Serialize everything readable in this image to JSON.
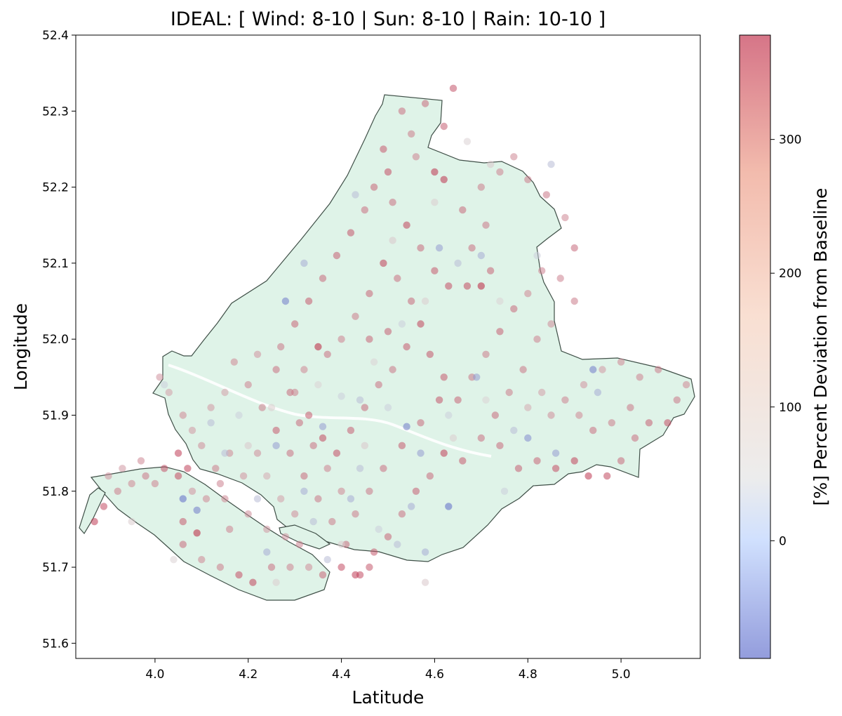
{
  "chart_data": {
    "type": "scatter",
    "title": "IDEAL: [ Wind: 8-10 | Sun: 8-10 | Rain: 10-10 ]",
    "xlabel": "Latitude",
    "ylabel": "Longitude",
    "xlim": [
      3.83,
      5.17
    ],
    "ylim": [
      51.58,
      52.4
    ],
    "xticks": [
      4.0,
      4.2,
      4.4,
      4.6,
      4.8,
      5.0
    ],
    "xtick_labels": [
      "4.0",
      "4.2",
      "4.4",
      "4.6",
      "4.8",
      "5.0"
    ],
    "yticks": [
      51.6,
      51.7,
      51.8,
      51.9,
      52.0,
      52.1,
      52.2,
      52.3,
      52.4
    ],
    "ytick_labels": [
      "51.6",
      "51.7",
      "51.8",
      "51.9",
      "52.0",
      "52.1",
      "52.2",
      "52.3",
      "52.4"
    ],
    "grid": false,
    "colormap": "coolwarm",
    "region_fill_color": "#dff3e8",
    "region_edge_color": "#3f4f47",
    "colorbar": {
      "label": "[%] Percent Deviation from Baseline",
      "range": [
        -88,
        378
      ],
      "ticks": [
        0,
        100,
        200,
        300
      ],
      "tick_labels": [
        "0",
        "100",
        "200",
        "300"
      ],
      "low_color": "#3b4cc0",
      "mid_color": "#dddddd",
      "high_color": "#b40426"
    },
    "points": [
      [
        4.49,
        52.25,
        230
      ],
      [
        4.5,
        52.22,
        250
      ],
      [
        4.47,
        52.2,
        210
      ],
      [
        4.45,
        52.17,
        190
      ],
      [
        4.42,
        52.14,
        240
      ],
      [
        4.39,
        52.11,
        220
      ],
      [
        4.36,
        52.08,
        200
      ],
      [
        4.33,
        52.05,
        230
      ],
      [
        4.3,
        52.02,
        210
      ],
      [
        4.27,
        51.99,
        180
      ],
      [
        4.53,
        52.3,
        190
      ],
      [
        4.58,
        52.31,
        200
      ],
      [
        4.62,
        52.28,
        220
      ],
      [
        4.64,
        52.33,
        240
      ],
      [
        4.6,
        52.22,
        300
      ],
      [
        4.62,
        52.21,
        300
      ],
      [
        4.55,
        52.27,
        170
      ],
      [
        4.56,
        52.24,
        160
      ],
      [
        4.51,
        52.18,
        190
      ],
      [
        4.54,
        52.15,
        270
      ],
      [
        4.57,
        52.12,
        200
      ],
      [
        4.6,
        52.09,
        230
      ],
      [
        4.63,
        52.07,
        250
      ],
      [
        4.67,
        52.07,
        260
      ],
      [
        4.7,
        52.07,
        330
      ],
      [
        4.72,
        52.09,
        210
      ],
      [
        4.68,
        52.12,
        190
      ],
      [
        4.71,
        52.15,
        180
      ],
      [
        4.66,
        52.17,
        200
      ],
      [
        4.7,
        52.2,
        170
      ],
      [
        4.74,
        52.22,
        160
      ],
      [
        4.77,
        52.24,
        150
      ],
      [
        4.8,
        52.21,
        170
      ],
      [
        4.84,
        52.19,
        180
      ],
      [
        4.88,
        52.16,
        150
      ],
      [
        4.9,
        52.12,
        200
      ],
      [
        4.87,
        52.08,
        160
      ],
      [
        4.9,
        52.05,
        170
      ],
      [
        4.85,
        52.02,
        140
      ],
      [
        4.82,
        52.0,
        160
      ],
      [
        4.79,
        51.96,
        180
      ],
      [
        4.76,
        51.93,
        170
      ],
      [
        4.73,
        51.9,
        200
      ],
      [
        4.7,
        51.87,
        190
      ],
      [
        4.66,
        51.84,
        230
      ],
      [
        4.62,
        51.85,
        280
      ],
      [
        4.59,
        51.82,
        200
      ],
      [
        4.56,
        51.8,
        220
      ],
      [
        4.53,
        51.77,
        190
      ],
      [
        4.5,
        51.74,
        210
      ],
      [
        4.47,
        51.72,
        230
      ],
      [
        4.44,
        51.69,
        250
      ],
      [
        4.41,
        51.73,
        200
      ],
      [
        4.38,
        51.76,
        170
      ],
      [
        4.35,
        51.79,
        180
      ],
      [
        4.32,
        51.82,
        200
      ],
      [
        4.29,
        51.85,
        190
      ],
      [
        4.26,
        51.88,
        230
      ],
      [
        4.23,
        51.91,
        170
      ],
      [
        4.2,
        51.94,
        160
      ],
      [
        4.17,
        51.97,
        150
      ],
      [
        4.22,
        51.98,
        130
      ],
      [
        4.26,
        51.96,
        190
      ],
      [
        4.29,
        51.93,
        200
      ],
      [
        4.33,
        51.9,
        230
      ],
      [
        4.36,
        51.87,
        260
      ],
      [
        4.39,
        51.85,
        250
      ],
      [
        4.42,
        51.88,
        220
      ],
      [
        4.45,
        51.91,
        200
      ],
      [
        4.48,
        51.94,
        190
      ],
      [
        4.51,
        51.96,
        180
      ],
      [
        4.54,
        51.99,
        230
      ],
      [
        4.57,
        52.02,
        270
      ],
      [
        4.55,
        52.05,
        200
      ],
      [
        4.52,
        52.08,
        190
      ],
      [
        4.49,
        52.1,
        280
      ],
      [
        4.46,
        52.06,
        210
      ],
      [
        4.43,
        52.03,
        170
      ],
      [
        4.4,
        52.0,
        160
      ],
      [
        4.37,
        51.98,
        190
      ],
      [
        4.35,
        51.99,
        330
      ],
      [
        4.32,
        51.96,
        150
      ],
      [
        4.3,
        51.93,
        170
      ],
      [
        4.46,
        52.0,
        210
      ],
      [
        4.5,
        52.01,
        220
      ],
      [
        4.59,
        51.98,
        240
      ],
      [
        4.62,
        51.95,
        230
      ],
      [
        4.65,
        51.92,
        210
      ],
      [
        4.68,
        51.95,
        180
      ],
      [
        4.71,
        51.98,
        170
      ],
      [
        4.74,
        52.01,
        220
      ],
      [
        4.77,
        52.04,
        200
      ],
      [
        4.8,
        52.06,
        150
      ],
      [
        4.83,
        52.09,
        160
      ],
      [
        4.74,
        51.86,
        200
      ],
      [
        4.78,
        51.83,
        220
      ],
      [
        4.82,
        51.84,
        210
      ],
      [
        4.86,
        51.83,
        250
      ],
      [
        4.9,
        51.84,
        270
      ],
      [
        4.93,
        51.82,
        290
      ],
      [
        4.97,
        51.82,
        260
      ],
      [
        5.0,
        51.84,
        200
      ],
      [
        5.03,
        51.87,
        190
      ],
      [
        5.06,
        51.89,
        220
      ],
      [
        5.1,
        51.89,
        250
      ],
      [
        5.12,
        51.92,
        180
      ],
      [
        5.14,
        51.94,
        150
      ],
      [
        5.08,
        51.96,
        170
      ],
      [
        5.04,
        51.95,
        160
      ],
      [
        5.0,
        51.97,
        150
      ],
      [
        4.96,
        51.96,
        120
      ],
      [
        4.92,
        51.94,
        130
      ],
      [
        4.88,
        51.92,
        160
      ],
      [
        4.85,
        51.9,
        140
      ],
      [
        4.83,
        51.93,
        110
      ],
      [
        4.8,
        51.91,
        90
      ],
      [
        4.94,
        51.88,
        190
      ],
      [
        4.98,
        51.89,
        170
      ],
      [
        5.02,
        51.91,
        180
      ],
      [
        4.91,
        51.9,
        150
      ],
      [
        4.61,
        51.92,
        240
      ],
      [
        4.57,
        51.89,
        200
      ],
      [
        4.53,
        51.86,
        230
      ],
      [
        4.49,
        51.83,
        190
      ],
      [
        4.46,
        51.8,
        180
      ],
      [
        4.43,
        51.77,
        170
      ],
      [
        4.4,
        51.8,
        150
      ],
      [
        4.37,
        51.83,
        160
      ],
      [
        4.34,
        51.86,
        190
      ],
      [
        4.31,
        51.89,
        200
      ],
      [
        4.22,
        51.85,
        140
      ],
      [
        4.19,
        51.82,
        130
      ],
      [
        4.16,
        51.85,
        150
      ],
      [
        4.13,
        51.83,
        170
      ],
      [
        4.1,
        51.86,
        140
      ],
      [
        4.08,
        51.88,
        120
      ],
      [
        4.06,
        51.9,
        150
      ],
      [
        4.03,
        51.93,
        110
      ],
      [
        4.01,
        51.95,
        130
      ],
      [
        4.05,
        51.85,
        280
      ],
      [
        4.07,
        51.83,
        270
      ],
      [
        4.12,
        51.91,
        120
      ],
      [
        4.15,
        51.93,
        110
      ],
      [
        4.24,
        51.82,
        90
      ],
      [
        4.27,
        51.79,
        110
      ],
      [
        4.14,
        51.81,
        160
      ],
      [
        4.11,
        51.79,
        150
      ],
      [
        4.08,
        51.8,
        130
      ],
      [
        4.05,
        51.82,
        260
      ],
      [
        4.02,
        51.83,
        240
      ],
      [
        3.98,
        51.82,
        180
      ],
      [
        3.95,
        51.81,
        150
      ],
      [
        3.92,
        51.8,
        170
      ],
      [
        3.89,
        51.78,
        250
      ],
      [
        3.87,
        51.76,
        280
      ],
      [
        3.9,
        51.82,
        130
      ],
      [
        3.93,
        51.83,
        120
      ],
      [
        3.97,
        51.84,
        150
      ],
      [
        4.0,
        51.81,
        160
      ],
      [
        4.06,
        51.76,
        230
      ],
      [
        4.09,
        51.745,
        330
      ],
      [
        4.06,
        51.73,
        200
      ],
      [
        4.1,
        51.71,
        150
      ],
      [
        4.14,
        51.7,
        170
      ],
      [
        4.18,
        51.69,
        250
      ],
      [
        4.21,
        51.68,
        270
      ],
      [
        4.25,
        51.7,
        190
      ],
      [
        4.29,
        51.7,
        160
      ],
      [
        4.33,
        51.7,
        140
      ],
      [
        4.36,
        51.69,
        210
      ],
      [
        4.4,
        51.7,
        250
      ],
      [
        4.43,
        51.69,
        280
      ],
      [
        4.46,
        51.7,
        230
      ],
      [
        4.16,
        51.75,
        160
      ],
      [
        4.2,
        51.77,
        140
      ],
      [
        4.24,
        51.75,
        120
      ],
      [
        4.28,
        51.74,
        130
      ],
      [
        4.31,
        51.73,
        160
      ],
      [
        4.3,
        51.77,
        140
      ],
      [
        4.15,
        51.79,
        150
      ],
      [
        4.09,
        51.775,
        -60
      ],
      [
        4.06,
        51.79,
        -70
      ],
      [
        4.15,
        51.85,
        -20
      ],
      [
        4.26,
        51.86,
        -40
      ],
      [
        4.32,
        51.8,
        -30
      ],
      [
        4.42,
        51.79,
        -30
      ],
      [
        4.52,
        51.73,
        -20
      ],
      [
        4.58,
        51.72,
        -30
      ],
      [
        4.55,
        51.78,
        -30
      ],
      [
        4.63,
        51.78,
        -70
      ],
      [
        4.57,
        51.85,
        -40
      ],
      [
        4.54,
        51.885,
        -60
      ],
      [
        4.63,
        51.9,
        -10
      ],
      [
        4.69,
        51.95,
        -40
      ],
      [
        4.77,
        51.88,
        -20
      ],
      [
        4.8,
        51.87,
        -50
      ],
      [
        4.86,
        51.85,
        -40
      ],
      [
        4.95,
        51.93,
        -30
      ],
      [
        4.94,
        51.96,
        -60
      ],
      [
        4.75,
        51.8,
        -10
      ],
      [
        4.5,
        51.91,
        -10
      ],
      [
        4.44,
        51.92,
        -20
      ],
      [
        4.28,
        52.05,
        -60
      ],
      [
        4.32,
        52.1,
        -30
      ],
      [
        4.43,
        52.19,
        -20
      ],
      [
        4.61,
        52.12,
        -40
      ],
      [
        4.65,
        52.1,
        -20
      ],
      [
        4.7,
        52.11,
        -30
      ],
      [
        4.53,
        52.02,
        -10
      ],
      [
        4.82,
        52.11,
        -10
      ],
      [
        4.85,
        52.23,
        -20
      ],
      [
        4.02,
        51.94,
        -10
      ],
      [
        4.12,
        51.89,
        -20
      ],
      [
        4.18,
        51.9,
        -10
      ],
      [
        4.22,
        51.79,
        -20
      ],
      [
        4.24,
        51.72,
        -30
      ],
      [
        4.37,
        51.71,
        -20
      ],
      [
        4.48,
        51.75,
        -10
      ],
      [
        4.34,
        51.76,
        -20
      ],
      [
        4.44,
        51.83,
        -20
      ],
      [
        4.36,
        51.885,
        -40
      ],
      [
        4.4,
        51.925,
        -10
      ],
      [
        4.47,
        51.97,
        20
      ],
      [
        4.58,
        52.05,
        30
      ],
      [
        4.74,
        52.05,
        20
      ],
      [
        4.51,
        52.13,
        40
      ],
      [
        4.6,
        52.18,
        30
      ],
      [
        4.67,
        52.26,
        20
      ],
      [
        4.72,
        52.23,
        40
      ],
      [
        4.35,
        51.94,
        20
      ],
      [
        4.25,
        51.91,
        30
      ],
      [
        4.2,
        51.86,
        40
      ],
      [
        3.95,
        51.76,
        30
      ],
      [
        4.04,
        51.71,
        20
      ],
      [
        4.26,
        51.68,
        30
      ],
      [
        4.58,
        51.68,
        40
      ],
      [
        4.4,
        51.73,
        30
      ],
      [
        4.45,
        51.86,
        40
      ],
      [
        4.64,
        51.87,
        30
      ],
      [
        4.71,
        51.92,
        20
      ]
    ]
  }
}
